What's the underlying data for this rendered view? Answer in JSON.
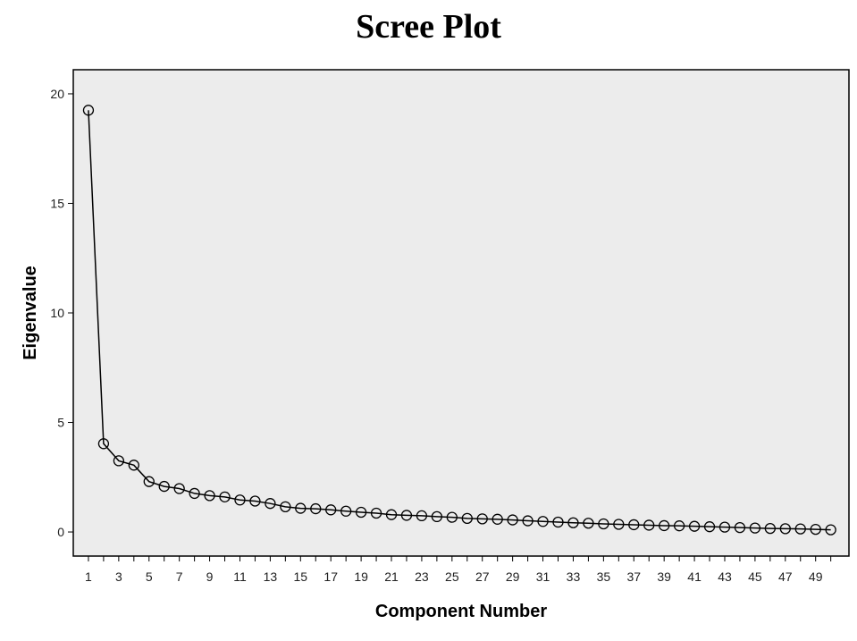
{
  "chart_data": {
    "type": "line",
    "title": "Scree Plot",
    "xlabel": "Component Number",
    "ylabel": "Eigenvalue",
    "xlim": [
      0,
      51.2
    ],
    "ylim": [
      -1.1,
      21.1
    ],
    "x_tick_labels": [
      "1",
      "3",
      "5",
      "7",
      "9",
      "11",
      "13",
      "15",
      "17",
      "19",
      "21",
      "23",
      "25",
      "27",
      "29",
      "31",
      "33",
      "35",
      "37",
      "39",
      "41",
      "43",
      "45",
      "47",
      "49"
    ],
    "y_ticks": [
      0,
      5,
      10,
      15,
      20
    ],
    "grid": false,
    "background_color": "#ececec",
    "line_color": "#000000",
    "marker": "open-circle",
    "series": [
      {
        "x": [
          1,
          2,
          3,
          4,
          5,
          6,
          7,
          8,
          9,
          10,
          11,
          12,
          13,
          14,
          15,
          16,
          17,
          18,
          19,
          20,
          21,
          22,
          23,
          24,
          25,
          26,
          27,
          28,
          29,
          30,
          31,
          32,
          33,
          34,
          35,
          36,
          37,
          38,
          39,
          40,
          41,
          42,
          43,
          44,
          45,
          46,
          47,
          48,
          49,
          50
        ],
        "values": [
          19.25,
          4.03,
          3.25,
          3.05,
          2.3,
          2.08,
          1.98,
          1.76,
          1.66,
          1.6,
          1.46,
          1.41,
          1.3,
          1.15,
          1.08,
          1.06,
          1.01,
          0.95,
          0.9,
          0.86,
          0.79,
          0.76,
          0.74,
          0.7,
          0.67,
          0.62,
          0.6,
          0.58,
          0.55,
          0.51,
          0.48,
          0.45,
          0.42,
          0.4,
          0.37,
          0.35,
          0.33,
          0.31,
          0.29,
          0.28,
          0.26,
          0.24,
          0.22,
          0.2,
          0.18,
          0.16,
          0.15,
          0.14,
          0.12,
          0.1
        ]
      }
    ]
  }
}
